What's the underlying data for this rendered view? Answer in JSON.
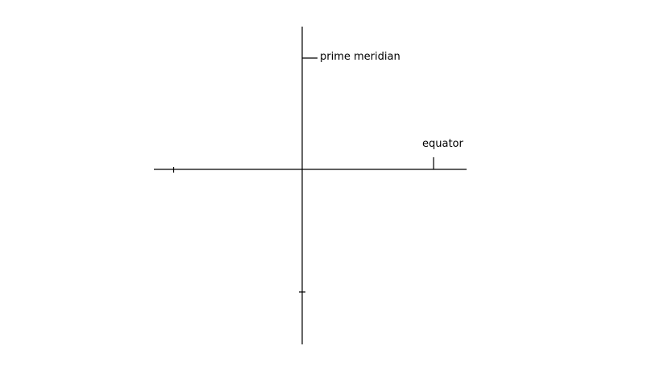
{
  "diagram": {
    "labels": {
      "prime_meridian": "prime meridian",
      "equator": "equator"
    },
    "line_color": "#000000",
    "background_color": "#ffffff"
  }
}
